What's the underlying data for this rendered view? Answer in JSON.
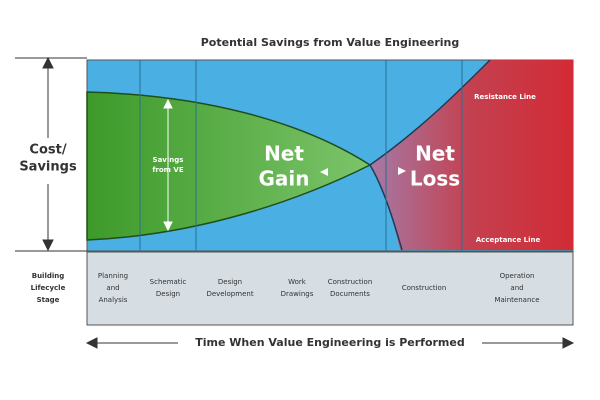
{
  "title": "Potential Savings from Value Engineering",
  "y_label": [
    "Cost/",
    "Savings"
  ],
  "row_label": [
    "Building",
    "Lifecycle",
    "Stage"
  ],
  "stages": [
    {
      "lines": [
        "Planning",
        "and",
        "Analysis"
      ]
    },
    {
      "lines": [
        "Schematic",
        "Design"
      ]
    },
    {
      "lines": [
        "Design",
        "Development"
      ]
    },
    {
      "lines": [
        "Work",
        "Drawings"
      ]
    },
    {
      "lines": [
        "Construction",
        "Documents"
      ]
    },
    {
      "lines": [
        "Construction"
      ]
    },
    {
      "lines": [
        "Operation",
        "and",
        "Maintenance"
      ]
    }
  ],
  "savings_label": [
    "Savings",
    "from VE"
  ],
  "net_gain": [
    "Net",
    "Gain"
  ],
  "net_loss": [
    "Net",
    "Loss"
  ],
  "resistance_line": "Resistance Line",
  "acceptance_line": "Acceptance Line",
  "x_label": "Time When Value Engineering is Performed"
}
